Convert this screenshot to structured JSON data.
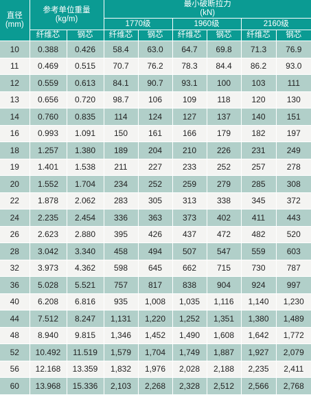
{
  "header": {
    "diameter": "直径",
    "diameter_unit": "(mm)",
    "weight": "参考单位重量",
    "weight_unit": "(kg/m)",
    "force": "最小破断拉力",
    "force_unit": "(kN)",
    "grade_1770": "1770级",
    "grade_1960": "1960级",
    "grade_2160": "2160级",
    "fiber_core": "纤维芯",
    "steel_core": "钢芯"
  },
  "rows": [
    [
      "10",
      "0.388",
      "0.426",
      "58.4",
      "63.0",
      "64.7",
      "69.8",
      "71.3",
      "76.9"
    ],
    [
      "11",
      "0.469",
      "0.515",
      "70.7",
      "76.2",
      "78.3",
      "84.4",
      "86.2",
      "93.0"
    ],
    [
      "12",
      "0.559",
      "0.613",
      "84.1",
      "90.7",
      "93.1",
      "100",
      "103",
      "111"
    ],
    [
      "13",
      "0.656",
      "0.720",
      "98.7",
      "106",
      "109",
      "118",
      "120",
      "130"
    ],
    [
      "14",
      "0.760",
      "0.835",
      "114",
      "124",
      "127",
      "137",
      "140",
      "151"
    ],
    [
      "16",
      "0.993",
      "1.091",
      "150",
      "161",
      "166",
      "179",
      "182",
      "197"
    ],
    [
      "18",
      "1.257",
      "1.380",
      "189",
      "204",
      "210",
      "226",
      "231",
      "249"
    ],
    [
      "19",
      "1.401",
      "1.538",
      "211",
      "227",
      "233",
      "252",
      "257",
      "278"
    ],
    [
      "20",
      "1.552",
      "1.704",
      "234",
      "252",
      "259",
      "279",
      "285",
      "308"
    ],
    [
      "22",
      "1.878",
      "2.062",
      "283",
      "305",
      "313",
      "338",
      "345",
      "372"
    ],
    [
      "24",
      "2.235",
      "2.454",
      "336",
      "363",
      "373",
      "402",
      "411",
      "443"
    ],
    [
      "26",
      "2.623",
      "2.880",
      "395",
      "426",
      "437",
      "472",
      "482",
      "520"
    ],
    [
      "28",
      "3.042",
      "3.340",
      "458",
      "494",
      "507",
      "547",
      "559",
      "603"
    ],
    [
      "32",
      "3.973",
      "4.362",
      "598",
      "645",
      "662",
      "715",
      "730",
      "787"
    ],
    [
      "36",
      "5.028",
      "5.521",
      "757",
      "817",
      "838",
      "904",
      "924",
      "997"
    ],
    [
      "40",
      "6.208",
      "6.816",
      "935",
      "1,008",
      "1,035",
      "1,116",
      "1,140",
      "1,230"
    ],
    [
      "44",
      "7.512",
      "8.247",
      "1,131",
      "1,220",
      "1,252",
      "1,351",
      "1,380",
      "1,489"
    ],
    [
      "48",
      "8.940",
      "9.815",
      "1,346",
      "1,452",
      "1,490",
      "1,608",
      "1,642",
      "1,772"
    ],
    [
      "52",
      "10.492",
      "11.519",
      "1,579",
      "1,704",
      "1,749",
      "1,887",
      "1,927",
      "2,079"
    ],
    [
      "56",
      "12.168",
      "13.359",
      "1,832",
      "1,976",
      "2,028",
      "2,188",
      "2,235",
      "2,411"
    ],
    [
      "60",
      "13.968",
      "15.336",
      "2,103",
      "2,268",
      "2,328",
      "2,512",
      "2,566",
      "2,768"
    ]
  ],
  "colors": {
    "header_bg": "#0b9b93",
    "stripe_dark": "#b1cfc9",
    "stripe_light": "#f4f4f2"
  }
}
